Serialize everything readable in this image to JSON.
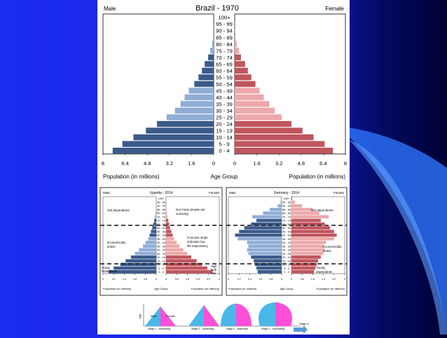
{
  "age_groups": [
    "0 - 4",
    "5 - 9",
    "10 - 14",
    "15 - 19",
    "20 - 24",
    "25 - 29",
    "30 - 34",
    "35 - 39",
    "40 - 44",
    "45 - 49",
    "50 - 54",
    "55 - 59",
    "60 - 64",
    "65 - 69",
    "70 - 74",
    "75 - 79",
    "80 - 84",
    "85 - 89",
    "90 - 94",
    "95 - 99",
    "100+"
  ],
  "chart_data": [
    {
      "type": "bar",
      "title": "Brazil - 1970",
      "left_label": "Male",
      "right_label": "Female",
      "xlabel_left": "Population (in millions)",
      "xlabel_center": "Age Group",
      "xlabel_right": "Population (in millions)",
      "xlim": [
        0,
        8
      ],
      "ticks": [
        "8",
        "6.4",
        "4.8",
        "3.2",
        "1.6",
        "0",
        "0",
        "1.6",
        "3.2",
        "4.8",
        "6.4",
        "8"
      ],
      "male": [
        7.3,
        6.6,
        5.8,
        4.9,
        4.1,
        3.4,
        2.8,
        2.4,
        2.1,
        1.8,
        1.4,
        1.1,
        0.85,
        0.65,
        0.4,
        0.25,
        0.12,
        0.05,
        0.02,
        0.01,
        0
      ],
      "female": [
        7.1,
        6.5,
        5.7,
        4.9,
        4.1,
        3.4,
        2.9,
        2.5,
        2.1,
        1.8,
        1.5,
        1.2,
        0.95,
        0.75,
        0.45,
        0.3,
        0.15,
        0.06,
        0.02,
        0.01,
        0
      ]
    },
    {
      "type": "bar",
      "title": "Uganda - 2014",
      "left_label": "Male",
      "right_label": "Female",
      "xlabel_left": "Population (in millions)",
      "xlabel_center": "Age Group",
      "xlabel_right": "Population (in millions)",
      "xlim": [
        0,
        4
      ],
      "ticks": [
        "4",
        "3.2",
        "2.4",
        "1.6",
        "0.8",
        "0",
        "0",
        "0.8",
        "1.6",
        "2.4",
        "3.2",
        "4"
      ],
      "male": [
        3.6,
        3.2,
        2.7,
        2.3,
        1.9,
        1.6,
        1.3,
        1.0,
        0.8,
        0.6,
        0.5,
        0.4,
        0.3,
        0.22,
        0.15,
        0.1,
        0.05,
        0.02,
        0.01,
        0,
        0
      ],
      "female": [
        3.5,
        3.1,
        2.7,
        2.3,
        1.9,
        1.6,
        1.3,
        1.0,
        0.8,
        0.6,
        0.5,
        0.4,
        0.3,
        0.24,
        0.17,
        0.11,
        0.06,
        0.03,
        0.01,
        0,
        0
      ],
      "annotations": [
        "Old dependents",
        "Not many people are surviving",
        "Economically active",
        "Concave slope indicates low life expectancy",
        "Young dependents",
        "High birth rate"
      ]
    },
    {
      "type": "bar",
      "title": "Germany - 2014",
      "left_label": "Male",
      "right_label": "Female",
      "xlabel_left": "Population (in millions)",
      "xlabel_center": "Age Group",
      "xlabel_right": "Population (in millions)",
      "xlim": [
        0,
        4
      ],
      "ticks": [
        "4",
        "3.2",
        "2.4",
        "1.6",
        "0.8",
        "0",
        "0",
        "0.8",
        "1.6",
        "2.4",
        "3.2",
        "4"
      ],
      "male": [
        1.8,
        1.9,
        2.0,
        2.1,
        2.3,
        2.5,
        2.6,
        2.5,
        2.6,
        3.3,
        3.5,
        3.2,
        2.8,
        2.3,
        1.9,
        2.2,
        1.4,
        0.9,
        0.3,
        0.08,
        0.02
      ],
      "female": [
        1.7,
        1.8,
        1.9,
        2.0,
        2.2,
        2.4,
        2.5,
        2.4,
        2.6,
        3.2,
        3.4,
        3.2,
        2.9,
        2.5,
        2.2,
        2.8,
        2.1,
        1.6,
        0.8,
        0.25,
        0.05
      ],
      "annotations": [
        "Old dependents",
        "Economically active",
        "Young dependents"
      ]
    }
  ],
  "stages": {
    "axis_label": "Age",
    "male": "Male",
    "female": "Female",
    "labels": [
      "Stage 1 - expanding",
      "Stage 2 - expanding",
      "Stage 3 - stationary",
      "Stage 4 - contracting"
    ],
    "next": "Stage 5"
  },
  "colors": {
    "male_dark": "#3b5a8a",
    "male_light": "#8fadd6",
    "female_dark": "#c0555d",
    "female_light": "#eda9aa"
  }
}
